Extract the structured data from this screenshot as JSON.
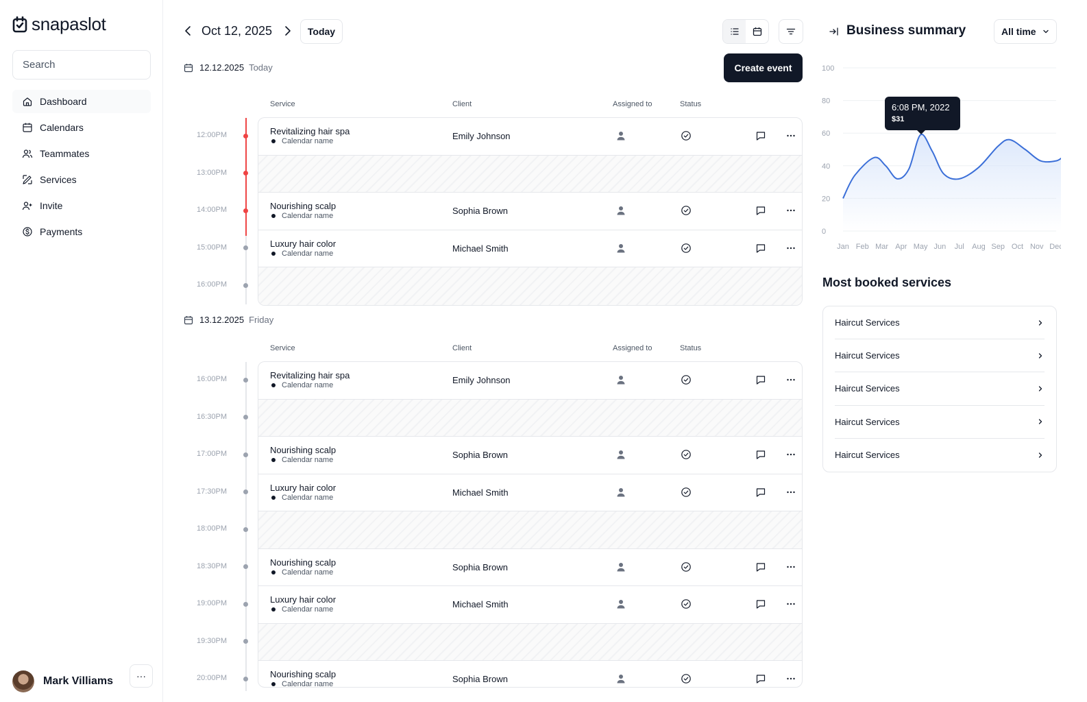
{
  "app": {
    "name": "snapaslot"
  },
  "search": {
    "placeholder": "Search"
  },
  "nav": [
    {
      "label": "Dashboard",
      "icon": "home-icon",
      "active": true
    },
    {
      "label": "Calendars",
      "icon": "calendar-icon"
    },
    {
      "label": "Teammates",
      "icon": "users-icon"
    },
    {
      "label": "Services",
      "icon": "brush-icon"
    },
    {
      "label": "Invite",
      "icon": "user-plus-icon"
    },
    {
      "label": "Payments",
      "icon": "dollar-circle-icon"
    }
  ],
  "user": {
    "name": "Mark Villiams",
    "more": "···"
  },
  "topbar": {
    "date": "Oct 12, 2025",
    "today": "Today",
    "create": "Create event"
  },
  "columns": {
    "service": "Service",
    "client": "Client",
    "assigned": "Assigned to",
    "status": "Status"
  },
  "days": [
    {
      "date": "12.12.2025",
      "day": "Today",
      "rows": [
        {
          "time": "12:00PM",
          "service": "Revitalizing hair spa",
          "calendar": "Calendar name",
          "client": "Emily Johnson"
        },
        {
          "time": "13:00PM",
          "empty": true
        },
        {
          "time": "14:00PM",
          "service": "Nourishing scalp",
          "calendar": "Calendar name",
          "client": "Sophia Brown"
        },
        {
          "time": "15:00PM",
          "service": "Luxury hair color",
          "calendar": "Calendar name",
          "client": "Michael Smith"
        },
        {
          "time": "16:00PM",
          "empty": true
        }
      ]
    },
    {
      "date": "13.12.2025",
      "day": "Friday",
      "rows": [
        {
          "time": "16:00PM",
          "service": "Revitalizing hair spa",
          "calendar": "Calendar name",
          "client": "Emily Johnson"
        },
        {
          "time": "16:30PM",
          "empty": true
        },
        {
          "time": "17:00PM",
          "service": "Nourishing scalp",
          "calendar": "Calendar name",
          "client": "Sophia Brown"
        },
        {
          "time": "17:30PM",
          "service": "Luxury hair color",
          "calendar": "Calendar name",
          "client": "Michael Smith"
        },
        {
          "time": "18:00PM",
          "empty": true
        },
        {
          "time": "18:30PM",
          "service": "Nourishing scalp",
          "calendar": "Calendar name",
          "client": "Sophia Brown"
        },
        {
          "time": "19:00PM",
          "service": "Luxury hair color",
          "calendar": "Calendar name",
          "client": "Michael Smith"
        },
        {
          "time": "19:30PM",
          "empty": true
        },
        {
          "time": "20:00PM",
          "service": "Nourishing scalp",
          "calendar": "Calendar name",
          "client": "Sophia Brown"
        }
      ]
    }
  ],
  "summary": {
    "title": "Business summary",
    "range": "All time",
    "tooltip": {
      "time": "6:08 PM, 2022",
      "value": "$31"
    }
  },
  "chart_data": {
    "type": "area",
    "categories": [
      "Jan",
      "Feb",
      "Mar",
      "Apr",
      "May",
      "Jun",
      "Jul",
      "Aug",
      "Sep",
      "Oct",
      "Nov",
      "Dec"
    ],
    "y_ticks": [
      100,
      80,
      60,
      40,
      20,
      0
    ],
    "ylim": [
      0,
      100
    ],
    "grid": true,
    "points": [
      [
        0,
        20
      ],
      [
        0.6,
        34
      ],
      [
        1.6,
        45
      ],
      [
        2.2,
        40
      ],
      [
        2.8,
        32
      ],
      [
        3.4,
        38
      ],
      [
        4.0,
        59
      ],
      [
        4.6,
        49
      ],
      [
        5.2,
        35
      ],
      [
        6.0,
        32
      ],
      [
        7.0,
        39
      ],
      [
        8.0,
        52
      ],
      [
        8.6,
        56
      ],
      [
        9.4,
        50
      ],
      [
        10.2,
        43
      ],
      [
        11.0,
        43
      ],
      [
        11.4,
        46
      ]
    ],
    "highlight_x": 4.0,
    "colors": {
      "line": "#3b6fd8",
      "fill": "#dbe7fb"
    }
  },
  "most_booked": {
    "title": "Most booked services",
    "items": [
      "Haircut Services",
      "Haircut Services",
      "Haircut Services",
      "Haircut Services",
      "Haircut Services"
    ]
  }
}
